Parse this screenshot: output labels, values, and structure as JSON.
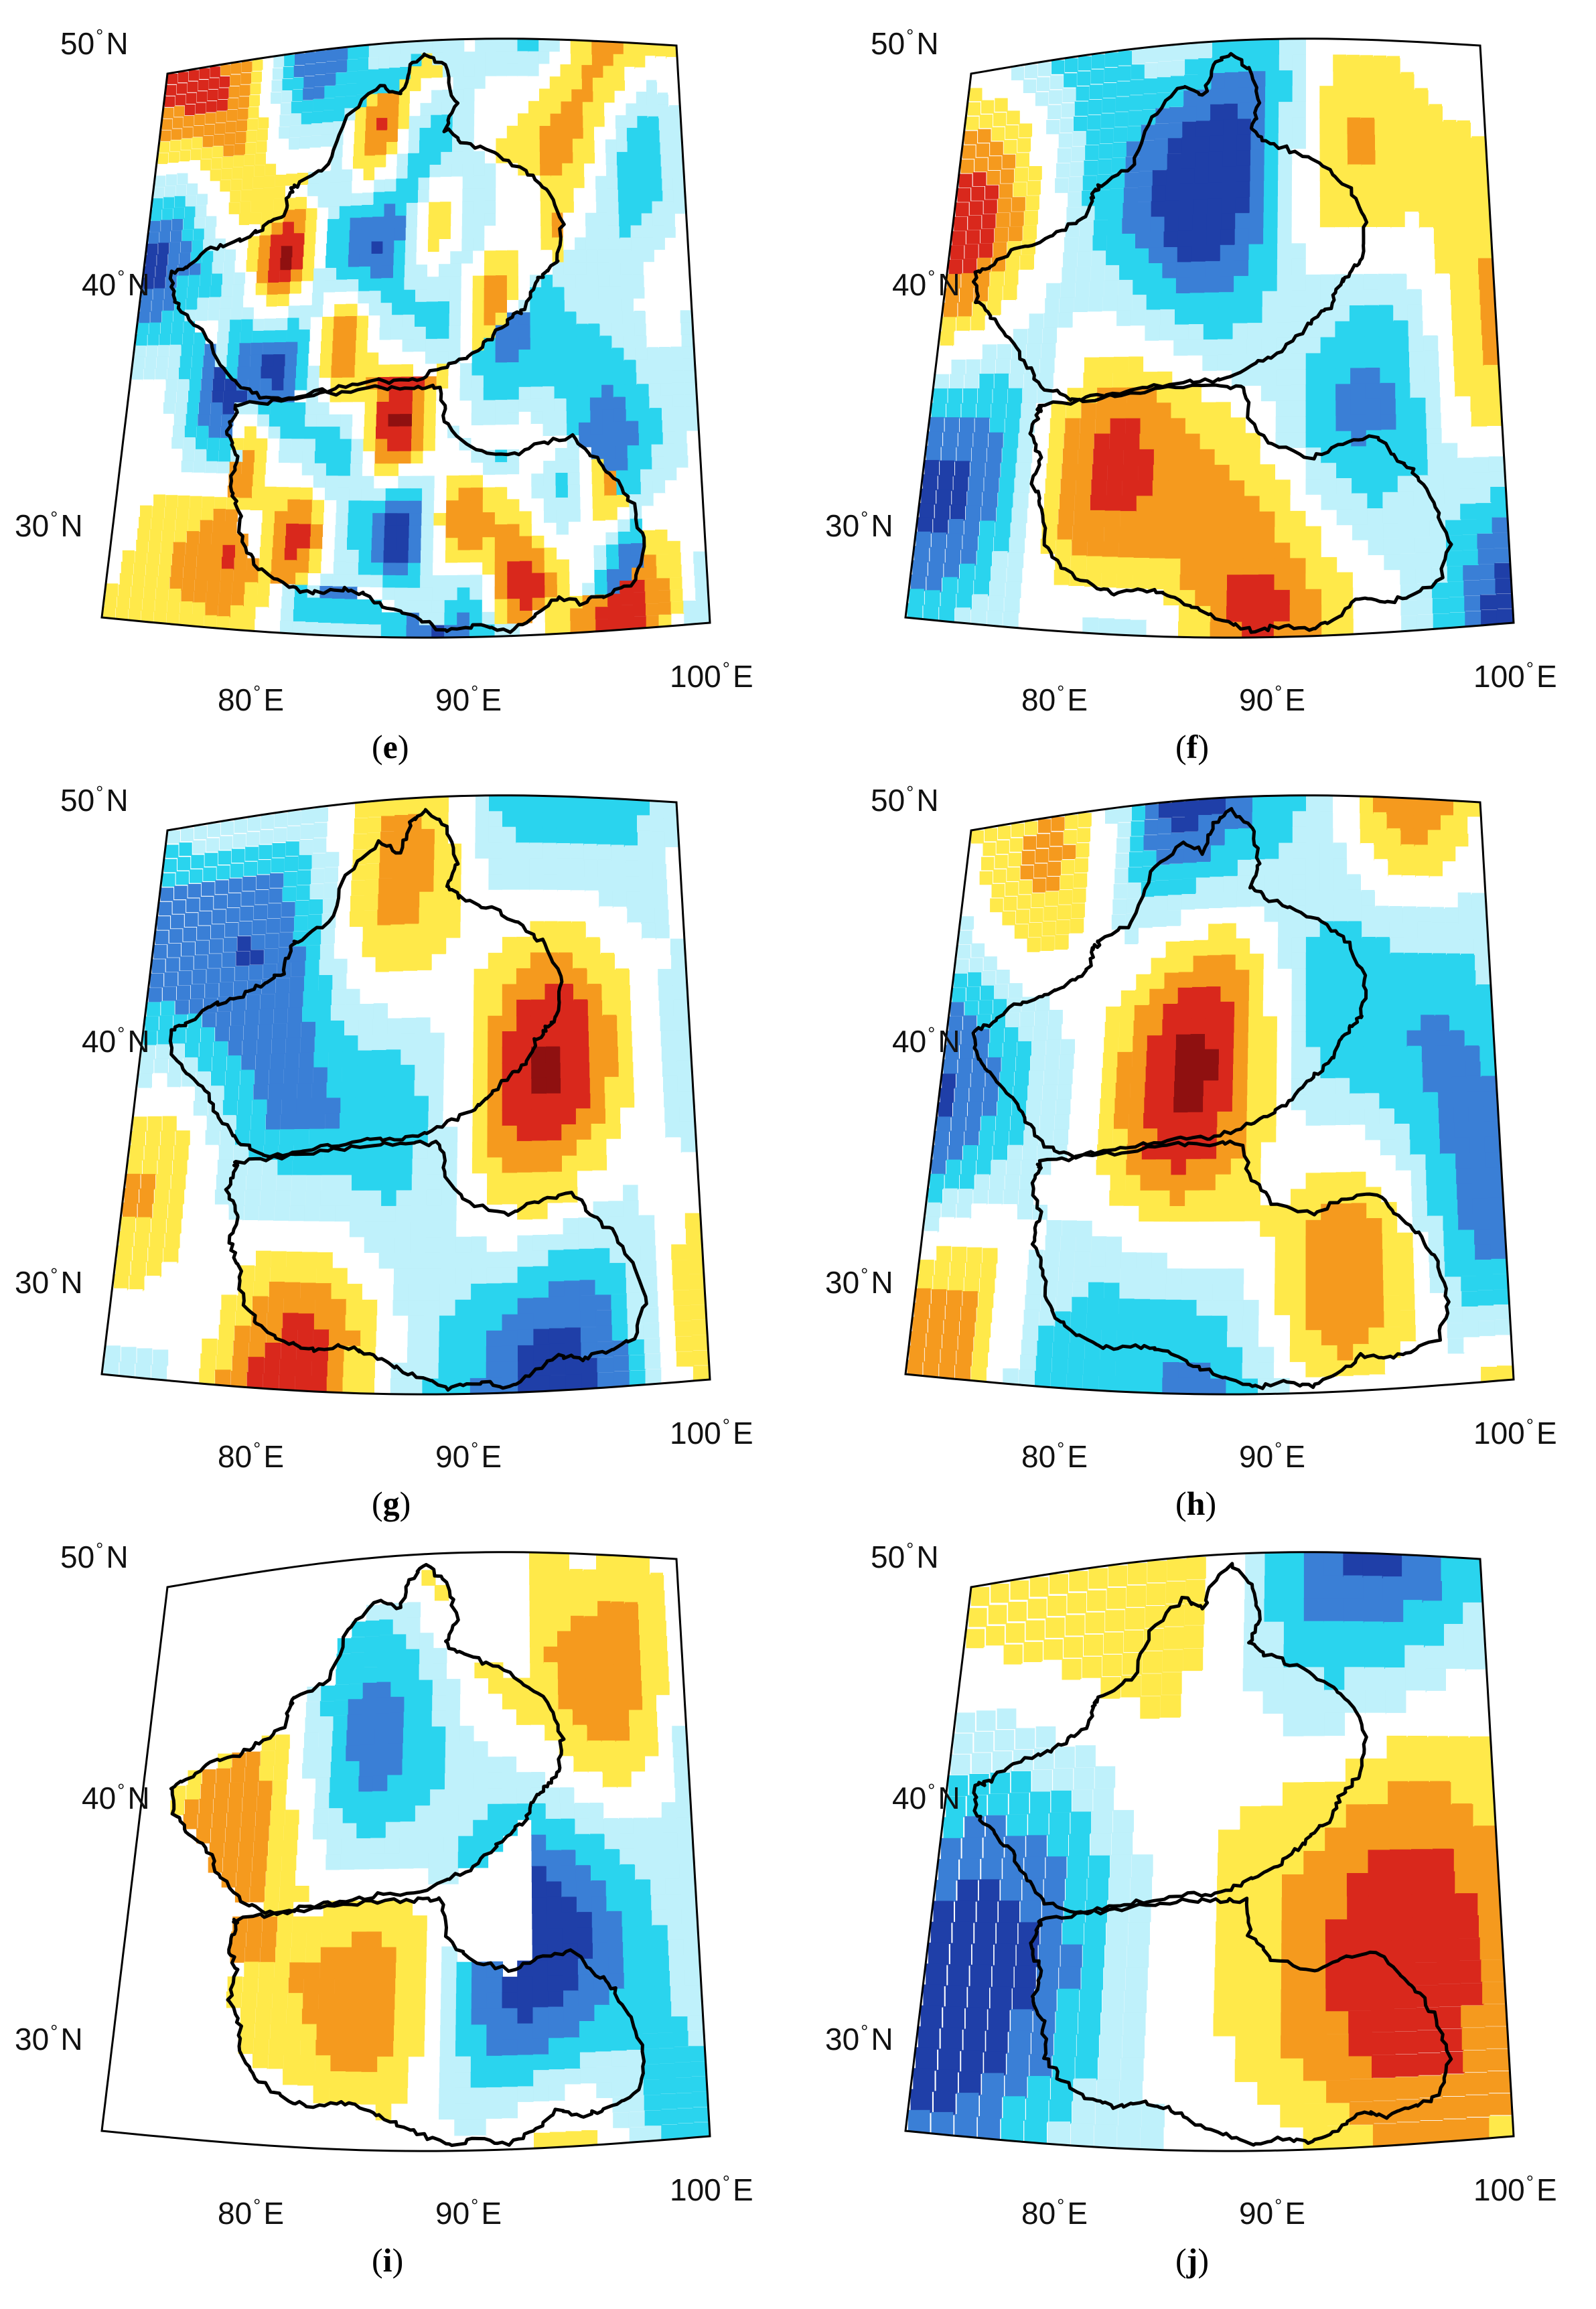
{
  "figure": {
    "panels": [
      {
        "id": "e",
        "caption": "e",
        "style": "fine",
        "masked_outside": false,
        "palette_note": "red-yellow-white-cyan-blue anomaly map"
      },
      {
        "id": "f",
        "caption": "f",
        "style": "medium",
        "masked_outside": false
      },
      {
        "id": "g",
        "caption": "g",
        "style": "medium",
        "masked_outside": false
      },
      {
        "id": "h",
        "caption": "h",
        "style": "medium",
        "masked_outside": false
      },
      {
        "id": "i",
        "caption": "i",
        "style": "medium",
        "masked_outside": true
      },
      {
        "id": "j",
        "caption": "j",
        "style": "smooth",
        "masked_outside": false
      }
    ],
    "lat_labels": [
      {
        "value": "50",
        "unit": "N"
      },
      {
        "value": "40",
        "unit": "N"
      },
      {
        "value": "30",
        "unit": "N"
      }
    ],
    "lon_labels": [
      {
        "value": "80",
        "unit": "E"
      },
      {
        "value": "90",
        "unit": "E"
      },
      {
        "value": "100",
        "unit": "E"
      }
    ],
    "degree_symbol": "°",
    "colors": {
      "deep_blue": "#1f3fa8",
      "blue": "#3a7fd6",
      "cyan": "#2ad4ee",
      "pale_cyan": "#bff1fb",
      "white": "#ffffff",
      "yellow": "#ffe94a",
      "orange": "#f59a1e",
      "red": "#d9281c",
      "dark_red": "#8f1010",
      "boundary": "#000000"
    }
  }
}
